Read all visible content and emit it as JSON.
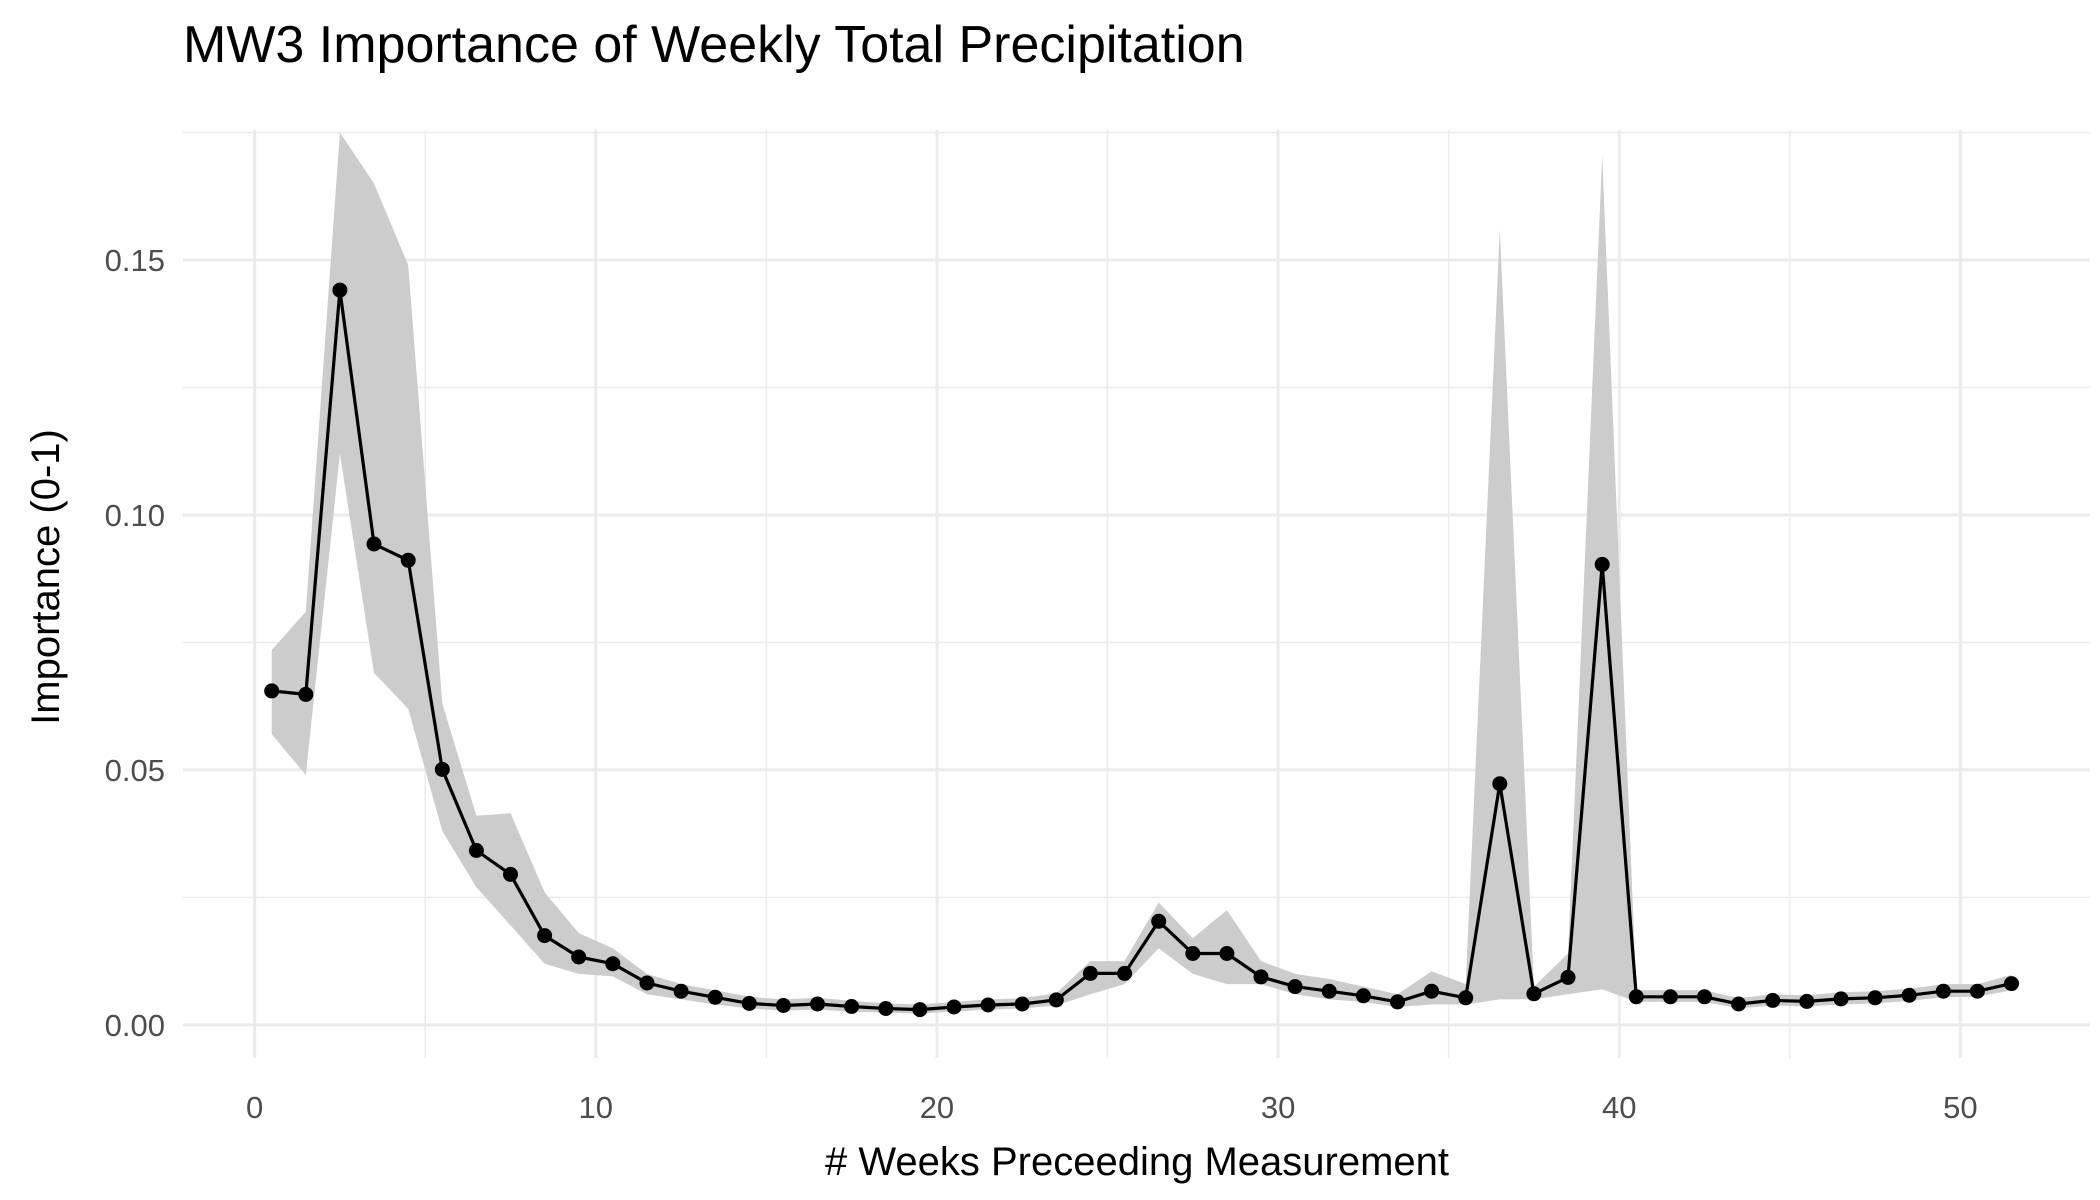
{
  "chart_data": {
    "type": "line",
    "title": "MW3 Importance of Weekly Total Precipitation",
    "xlabel": "# Weeks Preceeding Measurement",
    "ylabel": "Importance (0-1)",
    "xlim": [
      -2.1,
      53.8
    ],
    "ylim": [
      -0.0065,
      0.1755
    ],
    "x_ticks": [
      0,
      10,
      20,
      30,
      40,
      50
    ],
    "x_tick_labels": [
      "0",
      "10",
      "20",
      "30",
      "40",
      "50"
    ],
    "y_ticks": [
      0.0,
      0.05,
      0.1,
      0.15
    ],
    "y_tick_labels": [
      "0.00",
      "0.05",
      "0.10",
      "0.15"
    ],
    "grid": true,
    "legend": "none",
    "colors": {
      "line": "#000000",
      "point": "#000000",
      "ribbon": "#cccccc",
      "grid": "#ebebeb"
    },
    "series": [
      {
        "x": [
          0.5,
          1.5,
          2.5,
          3.5,
          4.5,
          5.5,
          6.5,
          7.5,
          8.5,
          9.5,
          10.5,
          11.5,
          12.5,
          13.5,
          14.5,
          15.5,
          16.5,
          17.5,
          18.5,
          19.5,
          20.5,
          21.5,
          22.5,
          23.5,
          24.5,
          25.5,
          26.5,
          27.5,
          28.5,
          29.5,
          30.5,
          31.5,
          32.5,
          33.5,
          34.5,
          35.5,
          36.5,
          37.5,
          38.5,
          39.5,
          40.5,
          41.5,
          42.5,
          43.5,
          44.5,
          45.5,
          46.5,
          47.5,
          48.5,
          49.5,
          50.5,
          51.5
        ],
        "y": [
          0.0655,
          0.0648,
          0.1441,
          0.0943,
          0.0911,
          0.0501,
          0.0342,
          0.0295,
          0.0175,
          0.0133,
          0.012,
          0.0082,
          0.0066,
          0.0054,
          0.0042,
          0.0038,
          0.0041,
          0.0036,
          0.0032,
          0.003,
          0.0035,
          0.0039,
          0.0041,
          0.0049,
          0.0101,
          0.0101,
          0.0203,
          0.014,
          0.014,
          0.0094,
          0.0075,
          0.0066,
          0.0057,
          0.0045,
          0.0066,
          0.0053,
          0.0473,
          0.0061,
          0.0093,
          0.0903,
          0.0055,
          0.0055,
          0.0055,
          0.0041,
          0.0048,
          0.0046,
          0.0051,
          0.0053,
          0.0058,
          0.0066,
          0.0066,
          0.0081
        ],
        "lower": [
          0.057,
          0.049,
          0.112,
          0.069,
          0.062,
          0.038,
          0.027,
          0.0195,
          0.012,
          0.01,
          0.0095,
          0.006,
          0.005,
          0.004,
          0.0032,
          0.0028,
          0.003,
          0.0026,
          0.0024,
          0.0022,
          0.0026,
          0.003,
          0.0032,
          0.0038,
          0.006,
          0.008,
          0.015,
          0.01,
          0.008,
          0.008,
          0.006,
          0.005,
          0.0045,
          0.0035,
          0.004,
          0.004,
          0.005,
          0.005,
          0.006,
          0.007,
          0.0045,
          0.0045,
          0.0045,
          0.0032,
          0.0038,
          0.0036,
          0.004,
          0.0042,
          0.0047,
          0.0054,
          0.0055,
          0.0068
        ],
        "upper": [
          0.0735,
          0.081,
          0.175,
          0.165,
          0.149,
          0.063,
          0.041,
          0.0415,
          0.026,
          0.018,
          0.015,
          0.01,
          0.008,
          0.0068,
          0.0055,
          0.005,
          0.0053,
          0.0047,
          0.0042,
          0.004,
          0.0045,
          0.005,
          0.0052,
          0.0062,
          0.0125,
          0.0125,
          0.024,
          0.017,
          0.0225,
          0.0125,
          0.01,
          0.009,
          0.0075,
          0.006,
          0.0105,
          0.008,
          0.156,
          0.0075,
          0.014,
          0.1705,
          0.0068,
          0.0068,
          0.0068,
          0.0052,
          0.006,
          0.0058,
          0.0064,
          0.0066,
          0.0071,
          0.008,
          0.008,
          0.0098
        ]
      }
    ]
  }
}
